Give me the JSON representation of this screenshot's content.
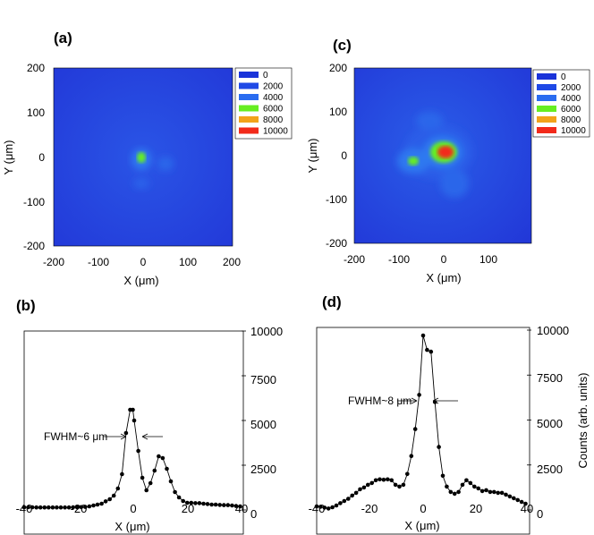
{
  "chart_data": [
    {
      "panel": "(a)",
      "type": "heatmap",
      "xlabel": "X (μm)",
      "ylabel": "Y (μm)",
      "xlim": [
        -200,
        200
      ],
      "ylim": [
        -200,
        200
      ],
      "x_ticks": [
        "-200",
        "-100",
        "0",
        "100",
        "200"
      ],
      "y_ticks": [
        "200",
        "100",
        "0",
        "-100",
        "-200"
      ],
      "legend": [
        {
          "label": "0",
          "color": "#1a33d9"
        },
        {
          "label": "2000",
          "color": "#1f49e6"
        },
        {
          "label": "4000",
          "color": "#2a6cf0"
        },
        {
          "label": "6000",
          "color": "#66ee22"
        },
        {
          "label": "8000",
          "color": "#f2a31a"
        },
        {
          "label": "10000",
          "color": "#f22a1a"
        }
      ],
      "hotspots": [
        {
          "x": 0,
          "y": 0,
          "value": 6000
        },
        {
          "x": 50,
          "y": -10,
          "value": 2200
        },
        {
          "x": 0,
          "y": -60,
          "value": 2000
        }
      ]
    },
    {
      "panel": "(c)",
      "type": "heatmap",
      "xlabel": "X (μm)",
      "ylabel": "Y (μm)",
      "xlim": [
        -200,
        200
      ],
      "ylim": [
        -200,
        200
      ],
      "x_ticks": [
        "-200",
        "-100",
        "0",
        "100"
      ],
      "y_ticks": [
        "200",
        "100",
        "0",
        "-100",
        "-200"
      ],
      "legend": [
        {
          "label": "0",
          "color": "#1a33d9"
        },
        {
          "label": "2000",
          "color": "#1f49e6"
        },
        {
          "label": "4000",
          "color": "#2a6cf0"
        },
        {
          "label": "6000",
          "color": "#66ee22"
        },
        {
          "label": "8000",
          "color": "#f2a31a"
        },
        {
          "label": "10000",
          "color": "#f22a1a"
        }
      ],
      "hotspots": [
        {
          "x": 0,
          "y": 10,
          "value": 10000
        },
        {
          "x": -70,
          "y": -10,
          "value": 6000
        },
        {
          "x": -20,
          "y": 80,
          "value": 2200
        },
        {
          "x": 30,
          "y": -50,
          "value": 2200
        }
      ]
    },
    {
      "panel": "(b)",
      "type": "line",
      "xlabel": "X (μm)",
      "ylabel": "",
      "xlim": [
        -40,
        40
      ],
      "ylim": [
        0,
        10000
      ],
      "x_ticks": [
        "-40",
        "-20",
        "0",
        "20",
        "40"
      ],
      "y_ticks": [
        "0",
        "2500",
        "5000",
        "7500",
        "10000"
      ],
      "annotation": "FWHM~6 μm",
      "x": [
        -40,
        -38.5,
        -37,
        -35.5,
        -34,
        -32.5,
        -31,
        -29.5,
        -28,
        -26.5,
        -25,
        -23.5,
        -22,
        -20.5,
        -19,
        -17.5,
        -16,
        -14.5,
        -13,
        -11.5,
        -10,
        -8.5,
        -7,
        -5.5,
        -4,
        -2.5,
        -1,
        0,
        0.5,
        2,
        3.5,
        5,
        6.5,
        8,
        9.5,
        11,
        12.5,
        14,
        15.5,
        17,
        18.5,
        20,
        21.5,
        23,
        24.5,
        26,
        27.5,
        29,
        30.5,
        32,
        33.5,
        35,
        36.5,
        38,
        39.5
      ],
      "y": [
        150,
        150,
        150,
        140,
        140,
        140,
        140,
        140,
        140,
        140,
        140,
        140,
        150,
        150,
        160,
        170,
        200,
        250,
        300,
        350,
        480,
        600,
        800,
        1200,
        2000,
        4300,
        5600,
        5600,
        5000,
        3300,
        1800,
        1100,
        1500,
        2200,
        3000,
        2900,
        2300,
        1600,
        1000,
        700,
        500,
        400,
        400,
        380,
        380,
        350,
        330,
        300,
        300,
        280,
        270,
        270,
        250,
        220,
        200
      ]
    },
    {
      "panel": "(d)",
      "type": "line",
      "xlabel": "X (μm)",
      "ylabel": "Counts (arb. units)",
      "xlim": [
        -40,
        40
      ],
      "ylim": [
        0,
        10000
      ],
      "x_ticks": [
        "-40",
        "-20",
        "0",
        "20",
        "40"
      ],
      "y_ticks": [
        "0",
        "2500",
        "5000",
        "7500",
        "10000"
      ],
      "annotation": "FWHM~8 μm",
      "x": [
        -40,
        -38.5,
        -37,
        -35.5,
        -34,
        -32.5,
        -31,
        -29.5,
        -28,
        -26.5,
        -25,
        -23.5,
        -22,
        -20.5,
        -19,
        -17.5,
        -16,
        -14.5,
        -13,
        -11.5,
        -10,
        -8.5,
        -7,
        -5.5,
        -4,
        -2.5,
        -1,
        0.5,
        2,
        3.5,
        5,
        6.5,
        8,
        9.5,
        11,
        12.5,
        14,
        15.5,
        17,
        18.5,
        20,
        21.5,
        23,
        24.5,
        26,
        27.5,
        29,
        30.5,
        32,
        33.5,
        35,
        36.5,
        38,
        39.5
      ],
      "y": [
        200,
        180,
        130,
        80,
        150,
        250,
        380,
        500,
        620,
        800,
        950,
        1150,
        1250,
        1400,
        1500,
        1650,
        1700,
        1680,
        1700,
        1650,
        1400,
        1300,
        1400,
        2000,
        3000,
        4500,
        6400,
        9700,
        8900,
        8800,
        6000,
        3500,
        1900,
        1300,
        1000,
        900,
        1000,
        1400,
        1650,
        1500,
        1300,
        1200,
        1050,
        1100,
        1000,
        1000,
        950,
        950,
        850,
        750,
        650,
        550,
        450,
        350
      ]
    }
  ]
}
